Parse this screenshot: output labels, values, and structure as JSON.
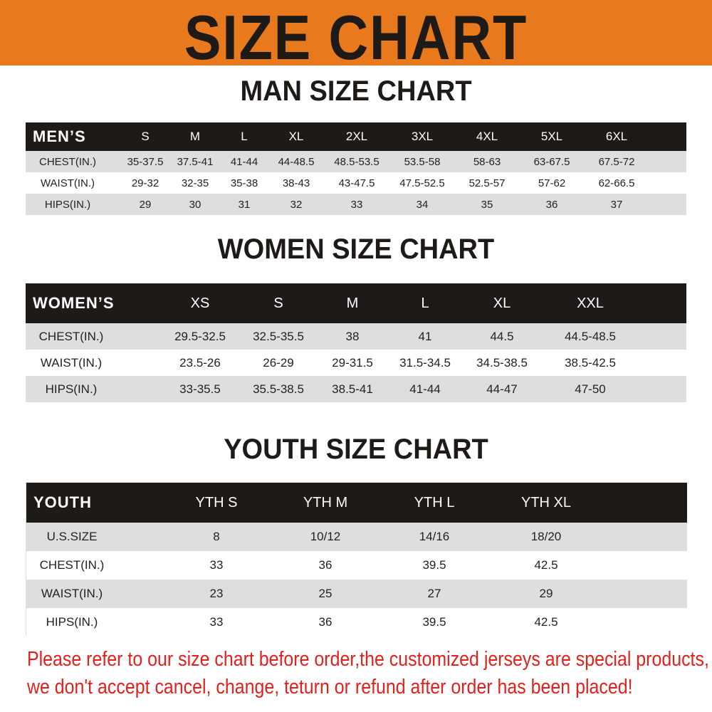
{
  "banner": {
    "title": "SIZE CHART",
    "color": "#e8791d"
  },
  "men": {
    "title": "MAN SIZE CHART",
    "header": [
      "MEN’S",
      "S",
      "M",
      "L",
      "XL",
      "2XL",
      "3XL",
      "4XL",
      "5XL",
      "6XL"
    ],
    "rows": [
      [
        "CHEST(IN.)",
        "35-37.5",
        "37.5-41",
        "41-44",
        "44-48.5",
        "48.5-53.5",
        "53.5-58",
        "58-63",
        "63-67.5",
        "67.5-72"
      ],
      [
        "WAIST(IN.)",
        "29-32",
        "32-35",
        "35-38",
        "38-43",
        "43-47.5",
        "47.5-52.5",
        "52.5-57",
        "57-62",
        "62-66.5"
      ],
      [
        "HIPS(IN.)",
        "29",
        "30",
        "31",
        "32",
        "33",
        "34",
        "35",
        "36",
        "37"
      ]
    ]
  },
  "women": {
    "title": "WOMEN SIZE CHART",
    "header": [
      "WOMEN’S",
      "XS",
      "S",
      "M",
      "L",
      "XL",
      "XXL"
    ],
    "rows": [
      [
        "CHEST(IN.)",
        "29.5-32.5",
        "32.5-35.5",
        "38",
        "41",
        "44.5",
        "44.5-48.5"
      ],
      [
        "WAIST(IN.)",
        "23.5-26",
        "26-29",
        "29-31.5",
        "31.5-34.5",
        "34.5-38.5",
        "38.5-42.5"
      ],
      [
        "HIPS(IN.)",
        "33-35.5",
        "35.5-38.5",
        "38.5-41",
        "41-44",
        "44-47",
        "47-50"
      ]
    ]
  },
  "youth": {
    "title": "YOUTH SIZE CHART",
    "header": [
      "YOUTH",
      "YTH S",
      "YTH M",
      "YTH L",
      "YTH XL"
    ],
    "rows": [
      [
        "U.S.SIZE",
        "8",
        "10/12",
        "14/16",
        "18/20"
      ],
      [
        "CHEST(IN.)",
        "33",
        "36",
        "39.5",
        "42.5"
      ],
      [
        "WAIST(IN.)",
        "23",
        "25",
        "27",
        "29"
      ],
      [
        "HIPS(IN.)",
        "33",
        "36",
        "39.5",
        "42.5"
      ]
    ]
  },
  "notice": {
    "line1": "Please refer to our size chart before order,the customized jerseys are special products,",
    "line2": "we don't accept cancel, change, teturn or refund after order has been placed!",
    "color": "#e4201c"
  }
}
